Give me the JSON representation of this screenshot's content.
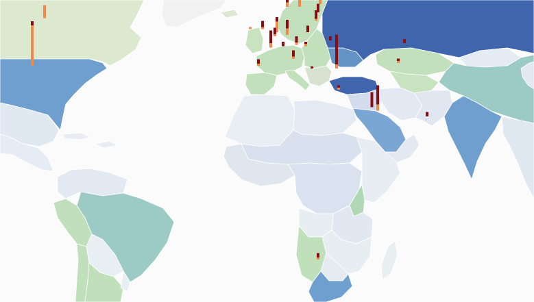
{
  "colors": {
    "ocean": "#fbfbfb",
    "bar_primary": "#8b0d12",
    "bar_secondary": "#f08a4b",
    "border": "#ffffff"
  },
  "legend_scale": [
    "#eef2f6",
    "#e3e7f0",
    "#d3dced",
    "#dde9ce",
    "#c3e0bc",
    "#b1d8b6",
    "#9ccbc6",
    "#79a6d2",
    "#6493c6",
    "#3f65ad"
  ],
  "regions": [
    {
      "id": "greenland",
      "fill": "#f1f1f1"
    },
    {
      "id": "canada",
      "fill": "#dde9ce"
    },
    {
      "id": "usa",
      "fill": "#6f9fcf"
    },
    {
      "id": "mexico",
      "fill": "#e0e8f1"
    },
    {
      "id": "central-america",
      "fill": "#e6ecf3"
    },
    {
      "id": "caribbean",
      "fill": "#e9edf3"
    },
    {
      "id": "colombia-venezuela",
      "fill": "#e3e9f2"
    },
    {
      "id": "peru-ecuador",
      "fill": "#bfe0bb"
    },
    {
      "id": "brazil",
      "fill": "#9ccbc6"
    },
    {
      "id": "bolivia-paraguay",
      "fill": "#e8eff2"
    },
    {
      "id": "chile",
      "fill": "#bfe0bb"
    },
    {
      "id": "argentina",
      "fill": "#bfe0bb"
    },
    {
      "id": "uruguay",
      "fill": "#e8eff2"
    },
    {
      "id": "iceland",
      "fill": "#dde9ce"
    },
    {
      "id": "uk-ireland",
      "fill": "#c7e3c0"
    },
    {
      "id": "scandinavia",
      "fill": "#c3e0bc"
    },
    {
      "id": "western-europe",
      "fill": "#c3e0bc"
    },
    {
      "id": "iberia",
      "fill": "#c3e0bc"
    },
    {
      "id": "italy",
      "fill": "#c3e0bc"
    },
    {
      "id": "eastern-europe",
      "fill": "#c3e0bc"
    },
    {
      "id": "balkans",
      "fill": "#d7e3d0"
    },
    {
      "id": "ukraine",
      "fill": "#6493c6"
    },
    {
      "id": "russia",
      "fill": "#3f65ad"
    },
    {
      "id": "turkey",
      "fill": "#3f65ad"
    },
    {
      "id": "kazakhstan",
      "fill": "#c3e0bc"
    },
    {
      "id": "central-asia",
      "fill": "#c7e3c0"
    },
    {
      "id": "mongolia",
      "fill": "#e5ebf2"
    },
    {
      "id": "china",
      "fill": "#9ccbc6"
    },
    {
      "id": "iran",
      "fill": "#e3e9f2"
    },
    {
      "id": "afghanistan-pakistan",
      "fill": "#e0e7f0"
    },
    {
      "id": "levant-iraq",
      "fill": "#d3dced"
    },
    {
      "id": "saudi-arabia",
      "fill": "#79a6d2"
    },
    {
      "id": "yemen-oman",
      "fill": "#e3e9f2"
    },
    {
      "id": "india",
      "fill": "#6f9fcf"
    },
    {
      "id": "southeast-asia",
      "fill": "#e0e8f1"
    },
    {
      "id": "north-africa-west",
      "fill": "#e8eef3"
    },
    {
      "id": "libya-egypt",
      "fill": "#e4eaf3"
    },
    {
      "id": "sahel",
      "fill": "#d9e0ee"
    },
    {
      "id": "west-africa-coast",
      "fill": "#dfe6ee"
    },
    {
      "id": "central-africa",
      "fill": "#dbe2ef"
    },
    {
      "id": "east-africa",
      "fill": "#e2e8f2"
    },
    {
      "id": "horn-of-africa",
      "fill": "#e7edf3"
    },
    {
      "id": "southern-central-africa",
      "fill": "#e6eef1"
    },
    {
      "id": "angola-namibia",
      "fill": "#bfe0bb"
    },
    {
      "id": "zambia-mozambique",
      "fill": "#e7eef2"
    },
    {
      "id": "botswana-zimbabwe",
      "fill": "#e5ebf1"
    },
    {
      "id": "south-africa",
      "fill": "#6f9fcf"
    },
    {
      "id": "madagascar",
      "fill": "#e7eff0"
    },
    {
      "id": "kenya",
      "fill": "#b1d8b6"
    },
    {
      "id": "japan-korea",
      "fill": "#e3e9f2"
    }
  ],
  "bars": [
    {
      "name": "canada",
      "lon": -108,
      "lat": 57,
      "primary": 0,
      "secondary": 6
    },
    {
      "name": "usa",
      "lon": -114,
      "lat": 40,
      "primary": 2,
      "secondary": 19
    },
    {
      "name": "uk",
      "lon": -2,
      "lat": 53,
      "primary": 3,
      "secondary": 1
    },
    {
      "name": "ireland",
      "lon": -8,
      "lat": 53,
      "primary": 0,
      "secondary": 1
    },
    {
      "name": "norway",
      "lon": 10,
      "lat": 61,
      "primary": 5,
      "secondary": 2
    },
    {
      "name": "sweden",
      "lon": 16,
      "lat": 61,
      "primary": 4,
      "secondary": 10
    },
    {
      "name": "finland",
      "lon": 26,
      "lat": 62,
      "primary": 12,
      "secondary": 8
    },
    {
      "name": "netherlands",
      "lon": 5,
      "lat": 52,
      "primary": 2,
      "secondary": 5
    },
    {
      "name": "belgium",
      "lon": 4,
      "lat": 50.5,
      "primary": 3,
      "secondary": 1
    },
    {
      "name": "germany",
      "lon": 10,
      "lat": 51,
      "primary": 4,
      "secondary": 3
    },
    {
      "name": "poland",
      "lon": 20,
      "lat": 52,
      "primary": 3,
      "secondary": 0
    },
    {
      "name": "baltic",
      "lon": 24,
      "lat": 56,
      "primary": 4,
      "secondary": 1
    },
    {
      "name": "estonia",
      "lon": 25,
      "lat": 59,
      "primary": 4,
      "secondary": 0
    },
    {
      "name": "france",
      "lon": 2,
      "lat": 46.5,
      "primary": 6,
      "secondary": 2
    },
    {
      "name": "switzerland",
      "lon": 8,
      "lat": 47,
      "primary": 2,
      "secondary": 0
    },
    {
      "name": "austria",
      "lon": 14.5,
      "lat": 47.5,
      "primary": 3,
      "secondary": 1
    },
    {
      "name": "hungary",
      "lon": 19,
      "lat": 47,
      "primary": 1,
      "secondary": 1
    },
    {
      "name": "italy",
      "lon": 13,
      "lat": 42.5,
      "primary": 3,
      "secondary": 1
    },
    {
      "name": "spain",
      "lon": -4,
      "lat": 40,
      "primary": 2,
      "secondary": 1
    },
    {
      "name": "greece",
      "lon": 22,
      "lat": 39,
      "primary": 1,
      "secondary": 0
    },
    {
      "name": "ukraine",
      "lon": 31,
      "lat": 49,
      "primary": 2,
      "secondary": 0
    },
    {
      "name": "turkey",
      "lon": 34,
      "lat": 39,
      "primary": 14,
      "secondary": 2
    },
    {
      "name": "kazakhstan",
      "lon": 67,
      "lat": 48,
      "primary": 2,
      "secondary": 0
    },
    {
      "name": "uzbekistan",
      "lon": 64,
      "lat": 41,
      "primary": 1,
      "secondary": 1
    },
    {
      "name": "israel",
      "lon": 35,
      "lat": 31.5,
      "primary": 1,
      "secondary": 1
    },
    {
      "name": "qatar",
      "lon": 51.2,
      "lat": 25.3,
      "primary": 7,
      "secondary": 0
    },
    {
      "name": "uae",
      "lon": 54,
      "lat": 24,
      "primary": 9,
      "secondary": 3
    },
    {
      "name": "india",
      "lon": 78,
      "lat": 22,
      "primary": 2,
      "secondary": 0
    },
    {
      "name": "south-africa",
      "lon": 25,
      "lat": -29,
      "primary": 2,
      "secondary": 1
    }
  ]
}
